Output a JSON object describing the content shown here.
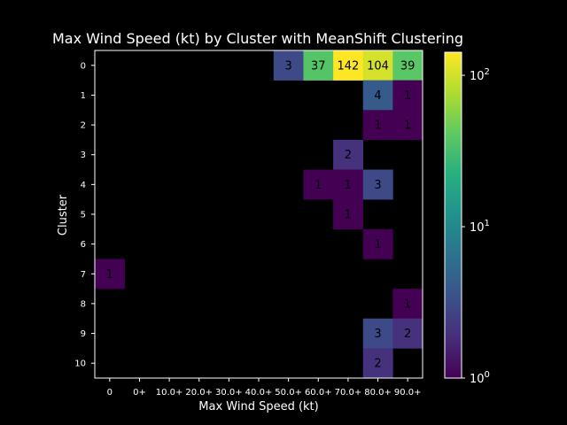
{
  "chart_data": {
    "type": "heatmap",
    "title": "Max Wind Speed (kt) by Cluster with MeanShift Clustering",
    "xlabel": "Max Wind Speed (kt)",
    "ylabel": "Cluster",
    "x_categories": [
      "0",
      "0+",
      "10.0+",
      "20.0+",
      "30.0+",
      "40.0+",
      "50.0+",
      "60.0+",
      "70.0+",
      "80.0+",
      "90.0+"
    ],
    "y_categories": [
      "0",
      "1",
      "2",
      "3",
      "4",
      "5",
      "6",
      "7",
      "8",
      "9",
      "10"
    ],
    "cells": [
      {
        "cluster": "0",
        "bin": "50.0+",
        "value": 3
      },
      {
        "cluster": "0",
        "bin": "60.0+",
        "value": 37
      },
      {
        "cluster": "0",
        "bin": "70.0+",
        "value": 142
      },
      {
        "cluster": "0",
        "bin": "80.0+",
        "value": 104
      },
      {
        "cluster": "0",
        "bin": "90.0+",
        "value": 39
      },
      {
        "cluster": "1",
        "bin": "80.0+",
        "value": 4
      },
      {
        "cluster": "1",
        "bin": "90.0+",
        "value": 1
      },
      {
        "cluster": "2",
        "bin": "80.0+",
        "value": 1
      },
      {
        "cluster": "2",
        "bin": "90.0+",
        "value": 1
      },
      {
        "cluster": "3",
        "bin": "70.0+",
        "value": 2
      },
      {
        "cluster": "4",
        "bin": "60.0+",
        "value": 1
      },
      {
        "cluster": "4",
        "bin": "70.0+",
        "value": 1
      },
      {
        "cluster": "4",
        "bin": "80.0+",
        "value": 3
      },
      {
        "cluster": "5",
        "bin": "70.0+",
        "value": 1
      },
      {
        "cluster": "6",
        "bin": "80.0+",
        "value": 1
      },
      {
        "cluster": "7",
        "bin": "0",
        "value": 1
      },
      {
        "cluster": "8",
        "bin": "90.0+",
        "value": 1
      },
      {
        "cluster": "9",
        "bin": "80.0+",
        "value": 3
      },
      {
        "cluster": "9",
        "bin": "90.0+",
        "value": 2
      },
      {
        "cluster": "10",
        "bin": "80.0+",
        "value": 2
      }
    ],
    "colorbar": {
      "scale": "log",
      "colormap": "viridis",
      "range": [
        1,
        142
      ],
      "tick_values": [
        1,
        10,
        100
      ],
      "tick_labels": [
        "10",
        "10",
        "10"
      ],
      "tick_exponents": [
        "0",
        "1",
        "2"
      ]
    },
    "background_color": "#000000",
    "grid": false
  }
}
